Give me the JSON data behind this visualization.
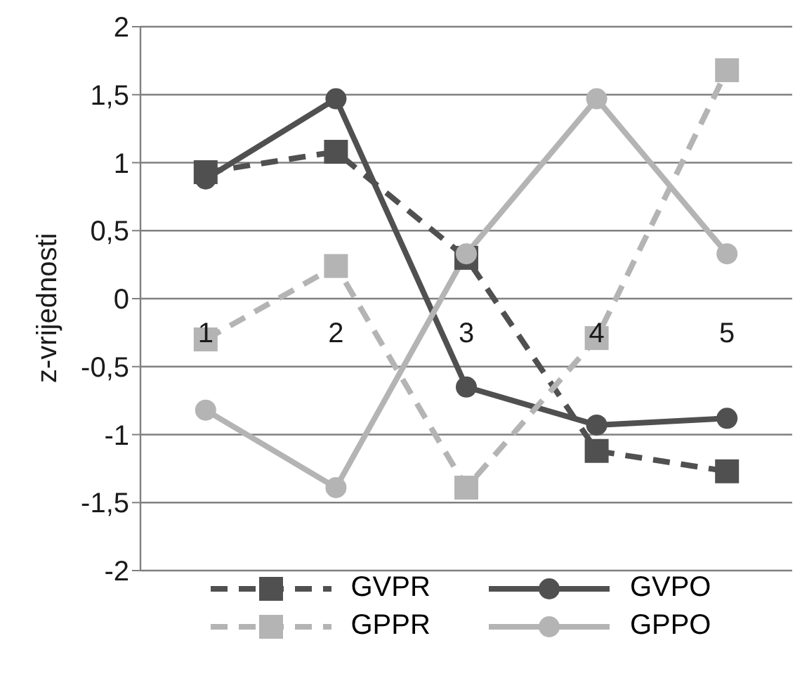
{
  "chart_data": {
    "type": "line",
    "ylabel": "z-vrijednosti",
    "categories": [
      "1",
      "2",
      "3",
      "4",
      "5"
    ],
    "series": [
      {
        "name": "GVPR",
        "color": "#505050",
        "marker": "square",
        "line_style": "dashed",
        "values": [
          0.93,
          1.08,
          0.3,
          -1.12,
          -1.27
        ]
      },
      {
        "name": "GVPO",
        "color": "#505050",
        "marker": "circle",
        "line_style": "solid",
        "values": [
          0.88,
          1.47,
          -0.65,
          -0.93,
          -0.88
        ]
      },
      {
        "name": "GPPR",
        "color": "#b4b4b4",
        "marker": "square",
        "line_style": "dashed",
        "values": [
          -0.3,
          0.24,
          -1.39,
          -0.29,
          1.68
        ]
      },
      {
        "name": "GPPO",
        "color": "#b4b4b4",
        "marker": "circle",
        "line_style": "solid",
        "values": [
          -0.82,
          -1.39,
          0.33,
          1.47,
          0.33
        ]
      }
    ],
    "ylim": [
      -2,
      2
    ],
    "yticks": [
      -2,
      {
        "value": -1.5,
        "label": "-1,5"
      },
      -1,
      {
        "value": -0.5,
        "label": "-0,5"
      },
      0,
      {
        "value": 0.5,
        "label": "0,5"
      },
      1,
      {
        "value": 1.5,
        "label": "1,5"
      },
      2
    ],
    "grid": "y",
    "legend": "bottom"
  }
}
